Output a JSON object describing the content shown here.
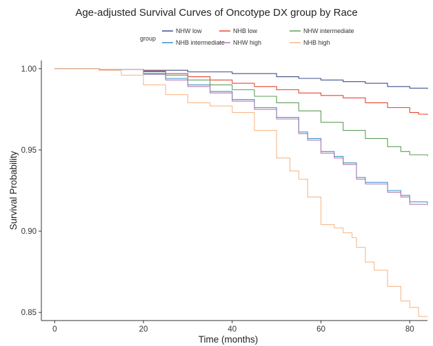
{
  "chart_data": {
    "type": "line",
    "title": "Age-adjusted Survival Curves of Oncotype DX group by Race",
    "xlabel": "Time (months)",
    "ylabel": "Survival Probability",
    "xlim": [
      -3,
      84
    ],
    "ylim": [
      0.845,
      1.005
    ],
    "x_ticks": [
      0,
      20,
      40,
      60,
      80
    ],
    "y_ticks": [
      0.85,
      0.9,
      0.95,
      1.0
    ],
    "x_tick_labels": [
      "0",
      "20",
      "40",
      "60",
      "80"
    ],
    "y_tick_labels": [
      "0.85",
      "0.90",
      "0.95",
      "1.00"
    ],
    "grid": false,
    "legend": {
      "title": "group",
      "position": "top"
    },
    "series": [
      {
        "name": "NHW low",
        "color": "#3b4e8c",
        "points": [
          [
            0,
            1.0
          ],
          [
            10,
            0.9995
          ],
          [
            20,
            0.999
          ],
          [
            30,
            0.998
          ],
          [
            40,
            0.997
          ],
          [
            50,
            0.995
          ],
          [
            55,
            0.994
          ],
          [
            60,
            0.993
          ],
          [
            65,
            0.992
          ],
          [
            70,
            0.991
          ],
          [
            75,
            0.989
          ],
          [
            80,
            0.988
          ],
          [
            84,
            0.9875
          ]
        ]
      },
      {
        "name": "NHB low",
        "color": "#e8432e",
        "points": [
          [
            0,
            1.0
          ],
          [
            10,
            0.9995
          ],
          [
            20,
            0.9985
          ],
          [
            25,
            0.997
          ],
          [
            30,
            0.995
          ],
          [
            35,
            0.993
          ],
          [
            40,
            0.991
          ],
          [
            45,
            0.989
          ],
          [
            50,
            0.987
          ],
          [
            55,
            0.985
          ],
          [
            60,
            0.9835
          ],
          [
            65,
            0.982
          ],
          [
            70,
            0.979
          ],
          [
            75,
            0.976
          ],
          [
            80,
            0.973
          ],
          [
            82,
            0.972
          ],
          [
            84,
            0.9715
          ]
        ]
      },
      {
        "name": "NHW intermediate",
        "color": "#5e9e5a",
        "points": [
          [
            0,
            1.0
          ],
          [
            10,
            0.9995
          ],
          [
            20,
            0.998
          ],
          [
            25,
            0.996
          ],
          [
            30,
            0.993
          ],
          [
            35,
            0.99
          ],
          [
            40,
            0.987
          ],
          [
            45,
            0.983
          ],
          [
            50,
            0.979
          ],
          [
            55,
            0.974
          ],
          [
            60,
            0.967
          ],
          [
            65,
            0.962
          ],
          [
            70,
            0.957
          ],
          [
            75,
            0.952
          ],
          [
            78,
            0.949
          ],
          [
            80,
            0.947
          ],
          [
            84,
            0.9462
          ]
        ]
      },
      {
        "name": "NHB intermediate",
        "color": "#3a8fcc",
        "points": [
          [
            0,
            1.0
          ],
          [
            10,
            0.9995
          ],
          [
            20,
            0.997
          ],
          [
            25,
            0.994
          ],
          [
            30,
            0.99
          ],
          [
            35,
            0.986
          ],
          [
            40,
            0.981
          ],
          [
            45,
            0.976
          ],
          [
            50,
            0.97
          ],
          [
            55,
            0.961
          ],
          [
            57,
            0.957
          ],
          [
            60,
            0.949
          ],
          [
            63,
            0.946
          ],
          [
            65,
            0.942
          ],
          [
            68,
            0.933
          ],
          [
            70,
            0.93
          ],
          [
            75,
            0.925
          ],
          [
            78,
            0.922
          ],
          [
            80,
            0.918
          ],
          [
            84,
            0.917
          ]
        ]
      },
      {
        "name": "NHW high",
        "color": "#b07bb0",
        "points": [
          [
            0,
            1.0
          ],
          [
            10,
            0.9995
          ],
          [
            20,
            0.9965
          ],
          [
            25,
            0.993
          ],
          [
            30,
            0.989
          ],
          [
            35,
            0.985
          ],
          [
            40,
            0.98
          ],
          [
            45,
            0.975
          ],
          [
            50,
            0.969
          ],
          [
            55,
            0.96
          ],
          [
            57,
            0.956
          ],
          [
            60,
            0.948
          ],
          [
            63,
            0.945
          ],
          [
            65,
            0.941
          ],
          [
            68,
            0.932
          ],
          [
            70,
            0.929
          ],
          [
            75,
            0.924
          ],
          [
            78,
            0.921
          ],
          [
            80,
            0.9165
          ],
          [
            84,
            0.916
          ]
        ]
      },
      {
        "name": "NHB high",
        "color": "#f7b98a",
        "points": [
          [
            0,
            1.0
          ],
          [
            10,
            0.999
          ],
          [
            15,
            0.996
          ],
          [
            20,
            0.99
          ],
          [
            25,
            0.984
          ],
          [
            30,
            0.979
          ],
          [
            35,
            0.977
          ],
          [
            40,
            0.973
          ],
          [
            45,
            0.962
          ],
          [
            50,
            0.945
          ],
          [
            53,
            0.937
          ],
          [
            55,
            0.932
          ],
          [
            57,
            0.921
          ],
          [
            60,
            0.904
          ],
          [
            63,
            0.902
          ],
          [
            65,
            0.899
          ],
          [
            67,
            0.896
          ],
          [
            68,
            0.89
          ],
          [
            70,
            0.881
          ],
          [
            72,
            0.876
          ],
          [
            75,
            0.866
          ],
          [
            78,
            0.857
          ],
          [
            80,
            0.853
          ],
          [
            82,
            0.8475
          ],
          [
            84,
            0.8475
          ]
        ]
      }
    ]
  }
}
